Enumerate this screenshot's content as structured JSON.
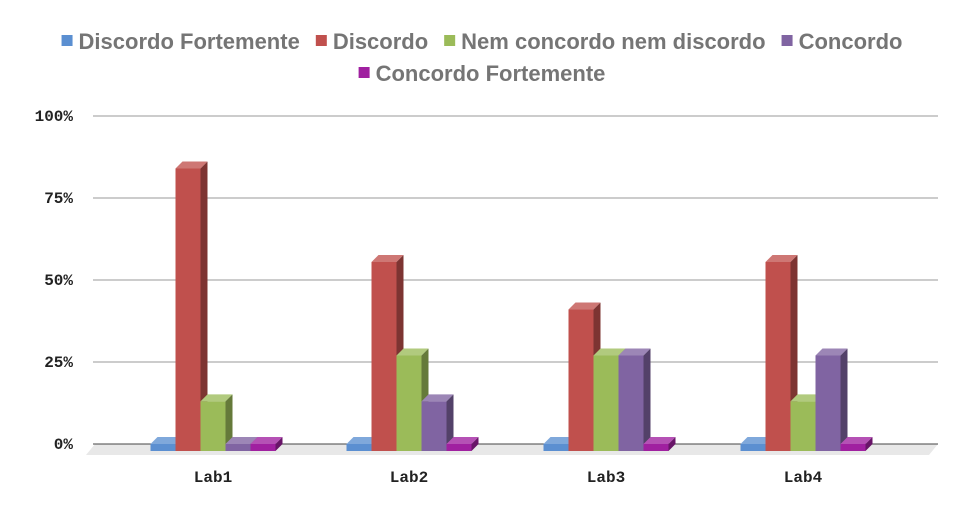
{
  "chart_data": {
    "type": "bar",
    "style": "3d-clustered-column",
    "categories": [
      "Lab1",
      "Lab2",
      "Lab3",
      "Lab4"
    ],
    "series": [
      {
        "name": "Discordo Fortemente",
        "color": "#5b8fd1",
        "values": [
          0,
          0,
          0,
          0
        ]
      },
      {
        "name": "Discordo",
        "color": "#c0504d",
        "values": [
          84,
          55.5,
          41,
          55.5
        ]
      },
      {
        "name": "Nem concordo nem discordo",
        "color": "#9bbb59",
        "values": [
          13,
          27,
          27,
          13
        ]
      },
      {
        "name": "Concordo",
        "color": "#8064a2",
        "values": [
          0,
          13,
          27,
          27
        ]
      },
      {
        "name": "Concordo Fortemente",
        "color": "#a020a0",
        "values": [
          0,
          0,
          0,
          0
        ]
      }
    ],
    "y_ticks": [
      "0%",
      "25%",
      "50%",
      "75%",
      "100%"
    ],
    "ylim": [
      0,
      100
    ],
    "grid": true,
    "legend_position": "top"
  }
}
